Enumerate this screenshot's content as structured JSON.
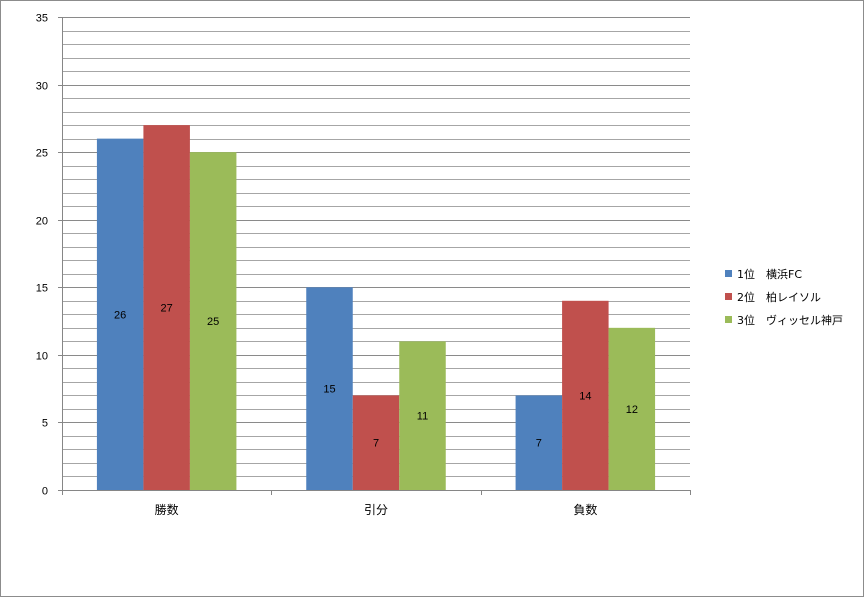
{
  "chart_data": {
    "type": "bar",
    "title": "",
    "xlabel": "",
    "ylabel": "",
    "categories": [
      "勝数",
      "引分",
      "負数"
    ],
    "series": [
      {
        "name": "1位　横浜FC",
        "color": "#4f81bd",
        "values": [
          26,
          15,
          7
        ]
      },
      {
        "name": "2位　柏レイソル",
        "color": "#c0504d",
        "values": [
          27,
          7,
          14
        ]
      },
      {
        "name": "3位　ヴィッセル神戸",
        "color": "#9bbb59",
        "values": [
          25,
          11,
          12
        ]
      }
    ],
    "ylim": [
      0,
      35
    ],
    "y_ticks": [
      0,
      5,
      10,
      15,
      20,
      25,
      30,
      35
    ],
    "minor_grid_step": 1,
    "grid": true,
    "legend_position": "right",
    "data_labels": true
  }
}
